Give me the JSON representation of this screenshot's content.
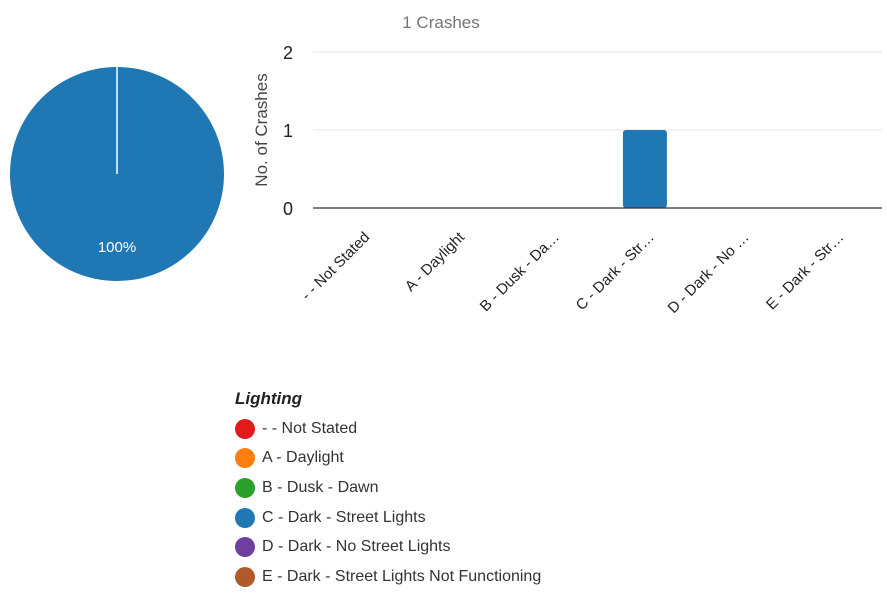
{
  "chart_data": [
    {
      "type": "pie",
      "slices": [
        {
          "category": "C - Dark - Street Lights",
          "value": 100,
          "color": "#1f77b4",
          "label": "100%"
        }
      ]
    },
    {
      "type": "bar",
      "title": "1 Crashes",
      "xlabel": "",
      "ylabel": "No. of Crashes",
      "ylim": [
        0,
        2
      ],
      "yticks": [
        "0",
        "1",
        "2"
      ],
      "grid": true,
      "categories": [
        "- - Not Stated",
        "A - Daylight",
        "B - Dusk - Da…",
        "C - Dark - Str…",
        "D - Dark - No …",
        "E - Dark - Str…"
      ],
      "values": [
        0,
        0,
        0,
        1,
        0,
        0
      ],
      "bar_color": "#1f77b4"
    }
  ],
  "legend": {
    "title": "Lighting",
    "items": [
      {
        "label": "- - Not Stated",
        "color": "#e31a1c"
      },
      {
        "label": "A - Daylight",
        "color": "#ff7f0e"
      },
      {
        "label": "B - Dusk - Dawn",
        "color": "#2ca02c"
      },
      {
        "label": "C - Dark - Street Lights",
        "color": "#1f77b4"
      },
      {
        "label": "D - Dark - No Street Lights",
        "color": "#6f3fa0"
      },
      {
        "label": "E - Dark - Street Lights Not Functioning",
        "color": "#b05a2c"
      }
    ]
  }
}
